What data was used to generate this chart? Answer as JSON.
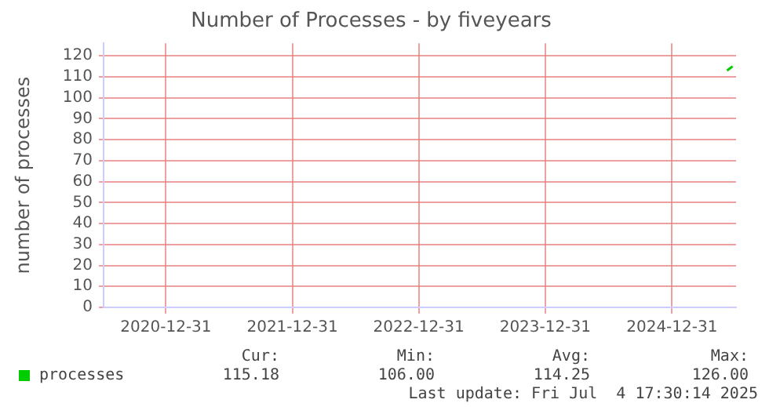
{
  "chart_data": {
    "type": "line",
    "title": "Number of Processes - by fiveyears",
    "ylabel": "number of processes",
    "x": [
      "2025-06-08",
      "2025-06-16",
      "2025-06-24"
    ],
    "series": [
      {
        "name": "processes",
        "color": "#00cc00",
        "values": [
          113,
          114,
          115
        ]
      }
    ],
    "xlim": [
      "2020-07-04",
      "2025-07-04"
    ],
    "xticks": [
      "2020-12-31",
      "2021-12-31",
      "2022-12-31",
      "2023-12-31",
      "2024-12-31"
    ],
    "ylim": [
      0,
      126
    ],
    "yticks": [
      0,
      10,
      20,
      30,
      40,
      50,
      60,
      70,
      80,
      90,
      100,
      110,
      120
    ],
    "grid": true,
    "legend": "bottom left",
    "marker": "none",
    "annotations": [
      "Cur:",
      "Min:",
      "Avg:",
      "Max:",
      "115.18",
      "106.00",
      "114.25",
      "126.00",
      "Last update: Fri Jul  4 17:30:14 2025"
    ]
  }
}
